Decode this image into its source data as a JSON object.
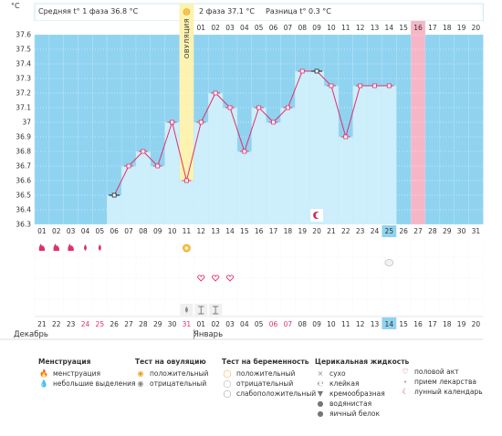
{
  "header": {
    "phase1_label": "Средняя t° 1 фаза",
    "phase1_value": "36.8 °C",
    "phase2_label": "2 фаза",
    "phase2_value": "37.1 °C",
    "diff_label": "Разница t°",
    "diff_value": "0.3 °C",
    "unit": "°C",
    "ovulation_label": "ОВУЛЯЦИЯ"
  },
  "colors": {
    "phase_bg": "#8fd3f0",
    "fill": "#cdeefb",
    "line": "#e0306a",
    "ovulation_col": "#fdf2b0",
    "highlight_col": "#f7b6c6",
    "today_cell": "#8fd3f0"
  },
  "chart_data": {
    "type": "line",
    "ylim": [
      36.3,
      37.6
    ],
    "yticks": [
      "36.3",
      "36.4",
      "36.5",
      "36.6",
      "36.7",
      "36.8",
      "36.9",
      "37",
      "37.1",
      "37.2",
      "37.3",
      "37.4",
      "37.5",
      "37.6"
    ],
    "top_days": [
      "",
      "01",
      "02",
      "03",
      "04",
      "05",
      "06",
      "07",
      "08",
      "09",
      "10",
      "11",
      "12",
      "13",
      "14",
      "15",
      "16",
      "17",
      "18",
      "19",
      "20"
    ],
    "bottom_days": [
      "01",
      "02",
      "03",
      "04",
      "05",
      "06",
      "07",
      "08",
      "09",
      "10",
      "11",
      "12",
      "13",
      "14",
      "15",
      "16",
      "17",
      "18",
      "19",
      "20",
      "21",
      "22",
      "23",
      "24",
      "25",
      "26",
      "27",
      "28",
      "29",
      "30",
      "31"
    ],
    "date_days": [
      "21",
      "22",
      "23",
      "24",
      "25",
      "26",
      "27",
      "28",
      "29",
      "30",
      "31",
      "01",
      "02",
      "03",
      "04",
      "05",
      "06",
      "07",
      "08",
      "09",
      "10",
      "11",
      "12",
      "13",
      "14",
      "15",
      "16",
      "17",
      "18",
      "19",
      "20"
    ],
    "date_red": [
      3,
      4,
      10,
      16,
      17
    ],
    "series": [
      {
        "x": [
          6,
          7,
          8,
          9,
          10,
          11,
          12,
          13,
          14,
          15,
          16,
          17,
          18,
          19,
          20,
          21,
          22,
          23,
          24,
          25
        ],
        "values": [
          36.5,
          36.7,
          36.8,
          36.7,
          37.0,
          36.6,
          37.0,
          37.2,
          37.1,
          36.8,
          37.1,
          37.0,
          37.1,
          37.35,
          37.35,
          37.25,
          36.9,
          37.25,
          37.25,
          37.25
        ]
      }
    ],
    "excluded_points": [
      6,
      20
    ],
    "ovulation_day": 11,
    "highlight_day": 27,
    "today_day": 25,
    "menstruation_days": [
      1,
      2,
      3
    ],
    "light_discharge_days": [
      4,
      5
    ],
    "ovulation_test_day": 11,
    "pregnancy_test_neutral_day": 25,
    "intercourse_days": [
      12,
      13,
      14
    ],
    "mucus_watery_day": 11,
    "mucus_sticky_days": [
      12,
      13
    ],
    "lunar_day": 20
  },
  "months": {
    "december": "Декабрь",
    "january": "Январь"
  },
  "legend": {
    "menstruation": {
      "title": "Менструация",
      "items": [
        "менструация",
        "небольшие выделения"
      ]
    },
    "ovulation_test": {
      "title": "Тест на овуляцию",
      "items": [
        "положительный",
        "отрицательный"
      ]
    },
    "pregnancy_test": {
      "title": "Тест на беременность",
      "items": [
        "положительный",
        "отрицательный",
        "слабоположительный"
      ]
    },
    "cervical": {
      "title": "Церикальная жидкость",
      "items": [
        "сухо",
        "клейкая",
        "кремообразная",
        "водянистая",
        "яичный белок"
      ]
    },
    "other": {
      "items": [
        "половой акт",
        "прием лекарства",
        "лунный календарь"
      ]
    }
  }
}
